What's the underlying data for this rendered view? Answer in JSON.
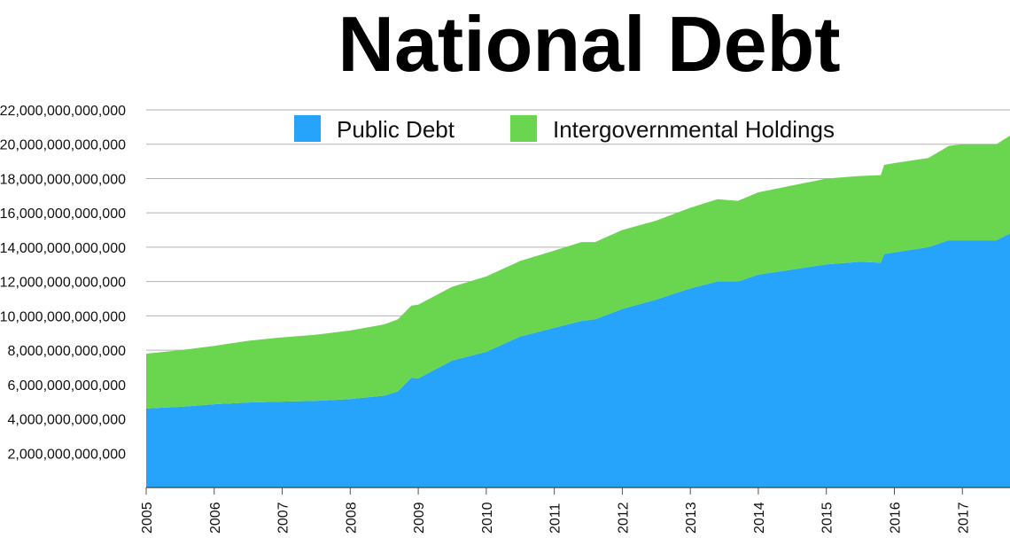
{
  "chart_data": {
    "type": "area",
    "stacked": true,
    "title": "National Debt",
    "xlabel": "",
    "ylabel": "",
    "ylim": [
      0,
      22000000000000
    ],
    "xlim": [
      2005,
      2017.7
    ],
    "y_tick_labels": [
      "2,000,000,000,000",
      "4,000,000,000,000",
      "6,000,000,000,000",
      "8,000,000,000,000",
      "10,000,000,000,000",
      "12,000,000,000,000",
      "14,000,000,000,000",
      "16,000,000,000,000",
      "18,000,000,000,000",
      "20,000,000,000,000",
      "22,000,000,000,000"
    ],
    "y_tick_values": [
      2000000000000,
      4000000000000,
      6000000000000,
      8000000000000,
      10000000000000,
      12000000000000,
      14000000000000,
      16000000000000,
      18000000000000,
      20000000000000,
      22000000000000
    ],
    "x_tick_labels": [
      "2005",
      "2006",
      "2007",
      "2008",
      "2009",
      "2010",
      "2011",
      "2012",
      "2013",
      "2014",
      "2015",
      "2016",
      "2017"
    ],
    "x_tick_values": [
      2005,
      2006,
      2007,
      2008,
      2009,
      2010,
      2011,
      2012,
      2013,
      2014,
      2015,
      2016,
      2017
    ],
    "legend_position": "top",
    "grid": true,
    "x": [
      2005.0,
      2005.5,
      2006.0,
      2006.5,
      2007.0,
      2007.5,
      2008.0,
      2008.5,
      2008.7,
      2008.9,
      2009.0,
      2009.5,
      2010.0,
      2010.5,
      2011.0,
      2011.4,
      2011.6,
      2012.0,
      2012.5,
      2013.0,
      2013.4,
      2013.7,
      2014.0,
      2014.5,
      2015.0,
      2015.5,
      2015.8,
      2015.85,
      2016.0,
      2016.5,
      2016.8,
      2017.0,
      2017.5,
      2017.7
    ],
    "series": [
      {
        "name": "Public Debt",
        "color": "#26a3fa",
        "values": [
          4600000000000.0,
          4700000000000.0,
          4850000000000.0,
          4950000000000.0,
          5000000000000.0,
          5050000000000.0,
          5150000000000.0,
          5350000000000.0,
          5600000000000.0,
          6400000000000.0,
          6350000000000.0,
          7400000000000.0,
          7900000000000.0,
          8800000000000.0,
          9300000000000.0,
          9700000000000.0,
          9800000000000.0,
          10400000000000.0,
          10950000000000.0,
          11600000000000.0,
          12000000000000.0,
          12000000000000.0,
          12400000000000.0,
          12700000000000.0,
          13000000000000.0,
          13150000000000.0,
          13100000000000.0,
          13600000000000.0,
          13700000000000.0,
          14000000000000.0,
          14400000000000.0,
          14400000000000.0,
          14400000000000.0,
          14800000000000.0
        ]
      },
      {
        "name": "Intergovernmental Holdings",
        "color": "#6ad64f",
        "values": [
          3200000000000.0,
          3300000000000.0,
          3400000000000.0,
          3600000000000.0,
          3750000000000.0,
          3850000000000.0,
          4000000000000.0,
          4150000000000.0,
          4200000000000.0,
          4200000000000.0,
          4300000000000.0,
          4300000000000.0,
          4400000000000.0,
          4400000000000.0,
          4500000000000.0,
          4600000000000.0,
          4500000000000.0,
          4600000000000.0,
          4600000000000.0,
          4700000000000.0,
          4800000000000.0,
          4700000000000.0,
          4800000000000.0,
          4900000000000.0,
          5000000000000.0,
          5000000000000.0,
          5100000000000.0,
          5200000000000.0,
          5200000000000.0,
          5200000000000.0,
          5500000000000.0,
          5600000000000.0,
          5600000000000.0,
          5700000000000.0
        ]
      }
    ]
  }
}
